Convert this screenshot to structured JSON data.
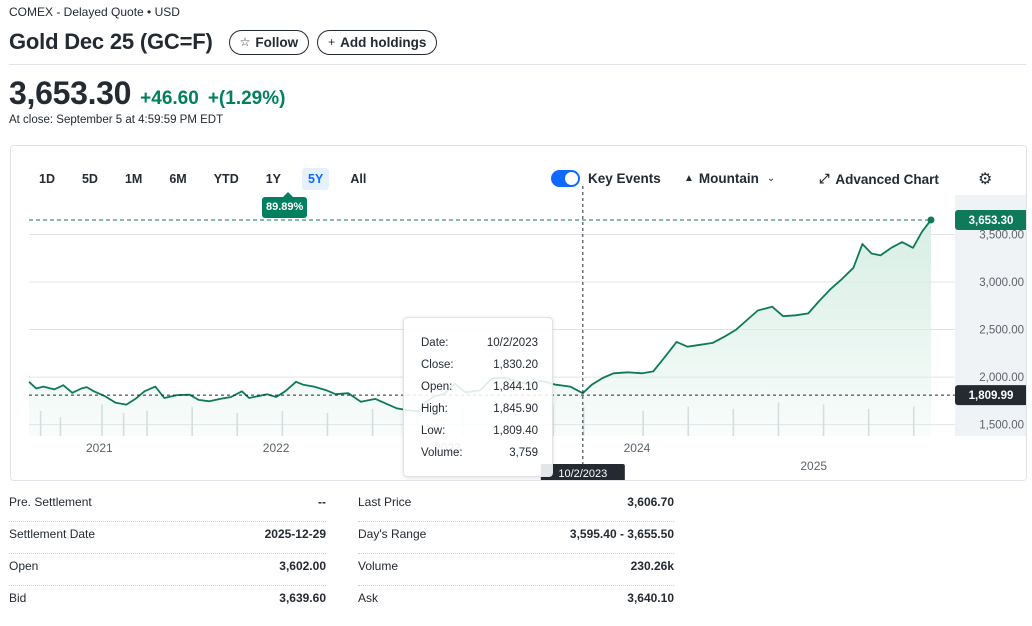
{
  "header": {
    "exchange": "COMEX - Delayed Quote • USD",
    "title": "Gold Dec 25 (GC=F)",
    "follow_label": "Follow",
    "add_holdings_label": "Add holdings"
  },
  "quote": {
    "price": "3,653.30",
    "change": "+46.60",
    "change_pct": "+(1.29%)",
    "close_time": "At close: September 5 at 4:59:59 PM EDT",
    "accent_color": "#008060"
  },
  "chart_toolbar": {
    "ranges": [
      "1D",
      "5D",
      "1M",
      "6M",
      "YTD",
      "1Y",
      "5Y",
      "All"
    ],
    "active_range": "5Y",
    "range_change_badge": "89.89%",
    "key_events_label": "Key Events",
    "key_events_on": true,
    "chart_type_label": "Mountain",
    "advanced_chart_label": "Advanced Chart",
    "icons": {
      "chart_type": "mountain-icon",
      "advanced": "expand-icon",
      "settings": "gear-icon"
    }
  },
  "chart_data": {
    "type": "area",
    "y_ticks": [
      "1,500.00",
      "2,000.00",
      "2,500.00",
      "3,000.00",
      "3,500.00"
    ],
    "y_tick_values": [
      1500,
      2000,
      2500,
      3000,
      3500
    ],
    "ylim": [
      1380,
      3800
    ],
    "x_ticks": [
      "2021",
      "2022",
      "2023",
      "2024",
      "2025"
    ],
    "x_tick_values": [
      2021.07,
      2022.05,
      2023.0,
      2024.05,
      2025.03
    ],
    "xlim": [
      2020.68,
      2025.68
    ],
    "series": [
      {
        "values": [
          [
            2020.68,
            1950
          ],
          [
            2020.72,
            1880
          ],
          [
            2020.76,
            1900
          ],
          [
            2020.82,
            1870
          ],
          [
            2020.87,
            1915
          ],
          [
            2020.92,
            1835
          ],
          [
            2020.97,
            1880
          ],
          [
            2021.0,
            1895
          ],
          [
            2021.04,
            1850
          ],
          [
            2021.1,
            1800
          ],
          [
            2021.16,
            1730
          ],
          [
            2021.22,
            1710
          ],
          [
            2021.27,
            1770
          ],
          [
            2021.32,
            1850
          ],
          [
            2021.38,
            1900
          ],
          [
            2021.43,
            1780
          ],
          [
            2021.5,
            1810
          ],
          [
            2021.57,
            1815
          ],
          [
            2021.62,
            1760
          ],
          [
            2021.68,
            1745
          ],
          [
            2021.74,
            1770
          ],
          [
            2021.8,
            1790
          ],
          [
            2021.86,
            1850
          ],
          [
            2021.9,
            1780
          ],
          [
            2021.95,
            1800
          ],
          [
            2022.0,
            1820
          ],
          [
            2022.05,
            1790
          ],
          [
            2022.1,
            1850
          ],
          [
            2022.16,
            1950
          ],
          [
            2022.2,
            1920
          ],
          [
            2022.26,
            1900
          ],
          [
            2022.33,
            1860
          ],
          [
            2022.38,
            1820
          ],
          [
            2022.45,
            1830
          ],
          [
            2022.52,
            1740
          ],
          [
            2022.6,
            1770
          ],
          [
            2022.66,
            1720
          ],
          [
            2022.72,
            1670
          ],
          [
            2022.78,
            1650
          ],
          [
            2022.84,
            1640
          ],
          [
            2022.88,
            1740
          ],
          [
            2022.93,
            1800
          ],
          [
            2022.98,
            1820
          ],
          [
            2023.04,
            1930
          ],
          [
            2023.1,
            1840
          ],
          [
            2023.18,
            1860
          ],
          [
            2023.25,
            1990
          ],
          [
            2023.32,
            1990
          ],
          [
            2023.38,
            1960
          ],
          [
            2023.45,
            1920
          ],
          [
            2023.52,
            1960
          ],
          [
            2023.6,
            1920
          ],
          [
            2023.68,
            1900
          ],
          [
            2023.75,
            1830
          ],
          [
            2023.8,
            1920
          ],
          [
            2023.86,
            1990
          ],
          [
            2023.92,
            2040
          ],
          [
            2024.0,
            2050
          ],
          [
            2024.08,
            2040
          ],
          [
            2024.14,
            2060
          ],
          [
            2024.2,
            2200
          ],
          [
            2024.27,
            2370
          ],
          [
            2024.33,
            2320
          ],
          [
            2024.4,
            2340
          ],
          [
            2024.47,
            2360
          ],
          [
            2024.54,
            2430
          ],
          [
            2024.6,
            2500
          ],
          [
            2024.66,
            2600
          ],
          [
            2024.72,
            2700
          ],
          [
            2024.8,
            2740
          ],
          [
            2024.86,
            2640
          ],
          [
            2024.93,
            2650
          ],
          [
            2025.0,
            2670
          ],
          [
            2025.06,
            2800
          ],
          [
            2025.12,
            2920
          ],
          [
            2025.18,
            3020
          ],
          [
            2025.25,
            3150
          ],
          [
            2025.3,
            3400
          ],
          [
            2025.35,
            3300
          ],
          [
            2025.4,
            3280
          ],
          [
            2025.46,
            3360
          ],
          [
            2025.52,
            3420
          ],
          [
            2025.58,
            3360
          ],
          [
            2025.63,
            3530
          ],
          [
            2025.68,
            3653.3
          ]
        ]
      }
    ],
    "volume_bars": [
      [
        2020.74,
        60
      ],
      [
        2020.85,
        45
      ],
      [
        2021.08,
        75
      ],
      [
        2021.2,
        55
      ],
      [
        2021.33,
        60
      ],
      [
        2021.58,
        70
      ],
      [
        2021.83,
        55
      ],
      [
        2022.08,
        60
      ],
      [
        2022.33,
        55
      ],
      [
        2022.58,
        65
      ],
      [
        2022.83,
        60
      ],
      [
        2023.08,
        70
      ],
      [
        2023.33,
        65
      ],
      [
        2023.58,
        75
      ],
      [
        2023.75,
        70
      ],
      [
        2024.08,
        60
      ],
      [
        2024.33,
        70
      ],
      [
        2024.58,
        65
      ],
      [
        2024.83,
        80
      ],
      [
        2025.08,
        75
      ],
      [
        2025.33,
        65
      ],
      [
        2025.58,
        70
      ]
    ],
    "current_price_label": "3,653.30",
    "crosshair_price_label": "1,809.99",
    "crosshair_x": 2023.75,
    "crosshair_y": 1809.99,
    "crosshair_date_label": "10/2/2023",
    "line_color": "#0e7a5a",
    "fill_color": "#d7eee4"
  },
  "tooltip": {
    "rows": [
      {
        "label": "Date:",
        "value": "10/2/2023"
      },
      {
        "label": "Close:",
        "value": "1,830.20"
      },
      {
        "label": "Open:",
        "value": "1,844.10"
      },
      {
        "label": "High:",
        "value": "1,845.90"
      },
      {
        "label": "Low:",
        "value": "1,809.40"
      },
      {
        "label": "Volume:",
        "value": "3,759"
      }
    ]
  },
  "stats": {
    "left": [
      {
        "label": "Pre. Settlement",
        "value": "--"
      },
      {
        "label": "Settlement Date",
        "value": "2025-12-29"
      },
      {
        "label": "Open",
        "value": "3,602.00"
      },
      {
        "label": "Bid",
        "value": "3,639.60"
      }
    ],
    "right": [
      {
        "label": "Last Price",
        "value": "3,606.70"
      },
      {
        "label": "Day's Range",
        "value": "3,595.40 - 3,655.50"
      },
      {
        "label": "Volume",
        "value": "230.26k"
      },
      {
        "label": "Ask",
        "value": "3,640.10"
      }
    ]
  }
}
